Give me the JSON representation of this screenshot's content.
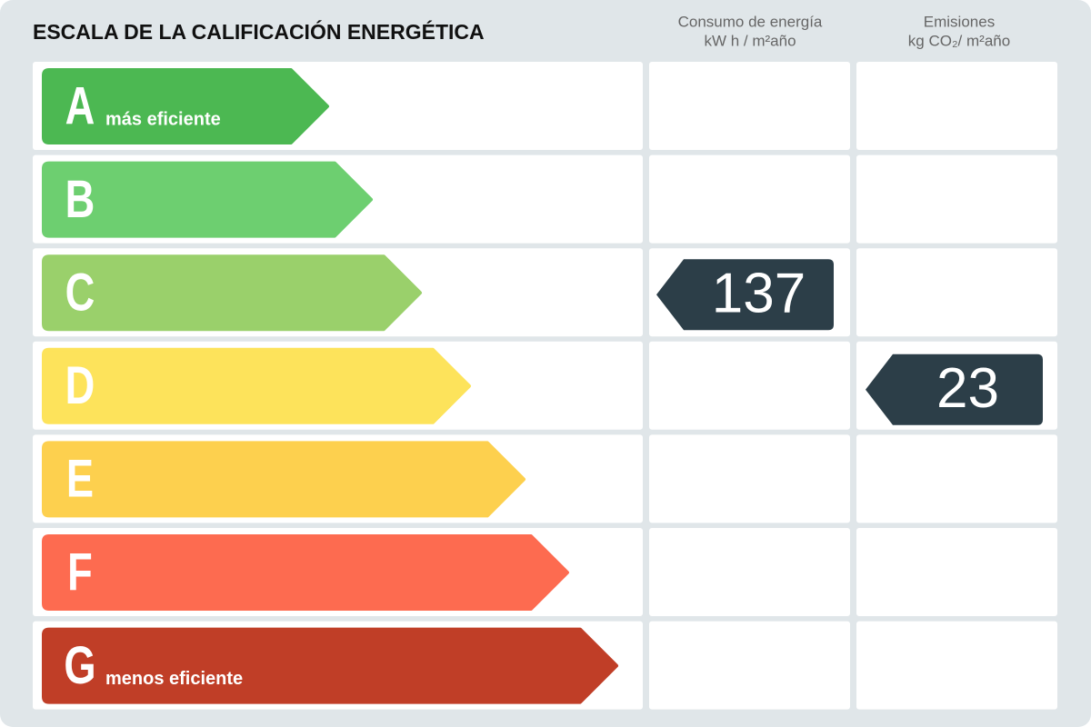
{
  "title": "ESCALA DE LA CALIFICACIÓN ENERGÉTICA",
  "columns": [
    {
      "line1": "Consumo de energía",
      "line2": "kW h / m²año"
    },
    {
      "line1": "Emisiones",
      "line2": "kg CO₂/ m²año"
    }
  ],
  "rows": [
    {
      "letter": "A",
      "note": "más eficiente",
      "color": "#4cb852"
    },
    {
      "letter": "B",
      "color": "#6dcf70"
    },
    {
      "letter": "C",
      "color": "#9ad06b",
      "consumption": 137
    },
    {
      "letter": "D",
      "color": "#fde35b",
      "emissions": 23
    },
    {
      "letter": "E",
      "color": "#fdd04e"
    },
    {
      "letter": "F",
      "color": "#fd6b50"
    },
    {
      "letter": "G",
      "note": "menos eficiente",
      "color": "#c03e27"
    }
  ],
  "indicator_color": "#2c3e48"
}
